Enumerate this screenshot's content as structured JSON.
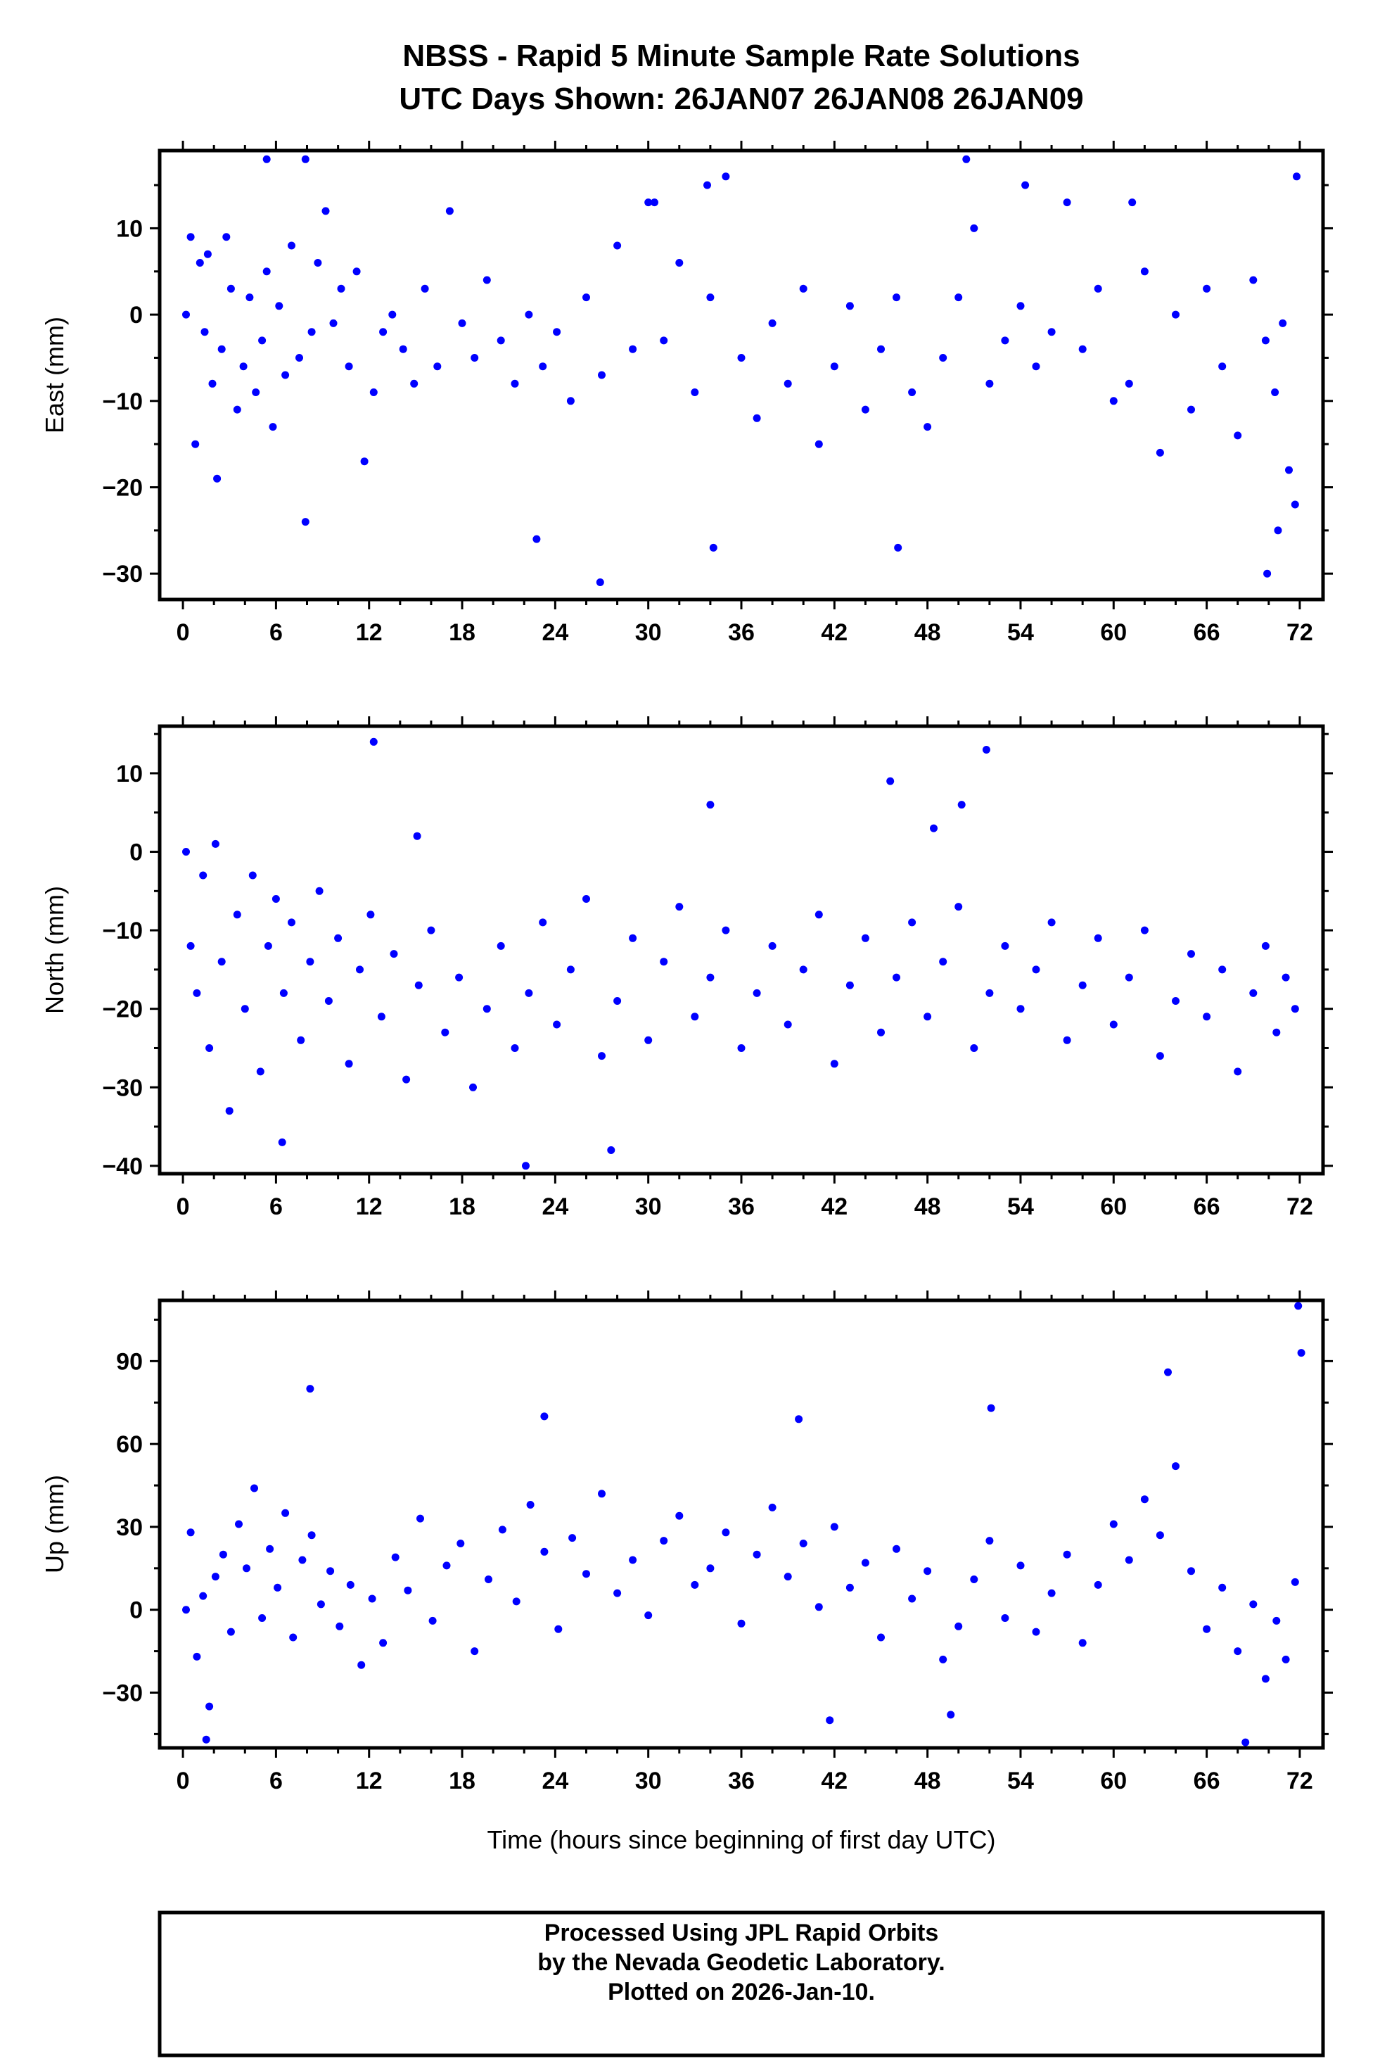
{
  "title": {
    "line1": "NBSS - Rapid 5 Minute Sample Rate Solutions",
    "line2": "UTC Days Shown:  26JAN07 26JAN08 26JAN09"
  },
  "xlabel": "Time (hours since beginning of first day UTC)",
  "footer": {
    "line1": "Processed Using JPL Rapid Orbits",
    "line2": "by the Nevada Geodetic Laboratory.",
    "line3": "Plotted on 2026-Jan-10."
  },
  "colors": {
    "points": "#0000ff",
    "frame": "#000000"
  },
  "chart_data": [
    {
      "type": "scatter",
      "ylabel": "East (mm)",
      "xlim": [
        -1.5,
        73.5
      ],
      "ylim": [
        -33,
        19
      ],
      "x_ticks": [
        0,
        6,
        12,
        18,
        24,
        30,
        36,
        42,
        48,
        54,
        60,
        66,
        72
      ],
      "y_ticks": [
        -30,
        -20,
        -10,
        0,
        10
      ],
      "x_tick_labels": [
        "0",
        "6",
        "12",
        "18",
        "24",
        "30",
        "36",
        "42",
        "48",
        "54",
        "60",
        "66",
        "72"
      ],
      "y_tick_labels": [
        "−30",
        "−20",
        "−10",
        "0",
        "10"
      ],
      "x": [
        0.2,
        0.5,
        0.8,
        1.1,
        1.4,
        1.6,
        1.9,
        2.2,
        2.5,
        2.8,
        3.1,
        3.5,
        3.9,
        4.3,
        4.7,
        5.1,
        5.4,
        5.8,
        6.2,
        6.6,
        7.0,
        7.5,
        7.9,
        8.3,
        8.7,
        9.2,
        9.7,
        10.2,
        10.7,
        11.2,
        11.7,
        12.3,
        12.9,
        13.5,
        14.2,
        14.9,
        15.6,
        16.4,
        17.2,
        18.0,
        18.8,
        19.6,
        20.5,
        21.4,
        22.3,
        23.2,
        24.1,
        25.0,
        26.0,
        27.0,
        28.0,
        29.0,
        30.0,
        31.0,
        32.0,
        33.0,
        34.0,
        35.0,
        36.0,
        37.0,
        38.0,
        39.0,
        40.0,
        41.0,
        42.0,
        43.0,
        44.0,
        45.0,
        46.0,
        47.0,
        48.0,
        49.0,
        50.0,
        51.0,
        52.0,
        53.0,
        54.0,
        55.0,
        56.0,
        57.0,
        58.0,
        59.0,
        60.0,
        61.0,
        62.0,
        63.0,
        64.0,
        65.0,
        66.0,
        67.0,
        68.0,
        69.0,
        69.8,
        70.4,
        70.9,
        71.3,
        71.7,
        5.4,
        7.9,
        22.8,
        26.9,
        30.4,
        33.8,
        34.2,
        46.1,
        50.5,
        54.3,
        61.2,
        69.9,
        70.6,
        71.8
      ],
      "y": [
        0,
        9,
        -15,
        6,
        -2,
        7,
        -8,
        -19,
        -4,
        9,
        3,
        -11,
        -6,
        2,
        -9,
        -3,
        5,
        -13,
        1,
        -7,
        8,
        -5,
        -24,
        -2,
        6,
        12,
        -1,
        3,
        -6,
        5,
        -17,
        -9,
        -2,
        0,
        -4,
        -8,
        3,
        -6,
        12,
        -1,
        -5,
        4,
        -3,
        -8,
        0,
        -6,
        -2,
        -10,
        2,
        -7,
        8,
        -4,
        13,
        -3,
        6,
        -9,
        2,
        16,
        -5,
        -12,
        -1,
        -8,
        3,
        -15,
        -6,
        1,
        -11,
        -4,
        2,
        -9,
        -13,
        -5,
        2,
        10,
        -8,
        -3,
        1,
        -6,
        -2,
        13,
        -4,
        3,
        -10,
        -8,
        5,
        -16,
        0,
        -11,
        3,
        -6,
        -14,
        4,
        -3,
        -9,
        -1,
        -18,
        -22,
        18,
        18,
        -26,
        -31,
        13,
        15,
        -27,
        -27,
        18,
        15,
        13,
        -30,
        -25,
        16
      ],
      "marker_color": "#0000ff"
    },
    {
      "type": "scatter",
      "ylabel": "North (mm)",
      "xlim": [
        -1.5,
        73.5
      ],
      "ylim": [
        -41,
        16
      ],
      "x_ticks": [
        0,
        6,
        12,
        18,
        24,
        30,
        36,
        42,
        48,
        54,
        60,
        66,
        72
      ],
      "y_ticks": [
        -40,
        -30,
        -20,
        -10,
        0,
        10
      ],
      "x_tick_labels": [
        "0",
        "6",
        "12",
        "18",
        "24",
        "30",
        "36",
        "42",
        "48",
        "54",
        "60",
        "66",
        "72"
      ],
      "y_tick_labels": [
        "−40",
        "−30",
        "−20",
        "−10",
        "0",
        "10"
      ],
      "x": [
        0.2,
        0.5,
        0.9,
        1.3,
        1.7,
        2.1,
        2.5,
        3.0,
        3.5,
        4.0,
        4.5,
        5.0,
        5.5,
        6.0,
        6.5,
        7.0,
        7.6,
        8.2,
        8.8,
        9.4,
        10.0,
        10.7,
        11.4,
        12.1,
        12.8,
        13.6,
        14.4,
        15.2,
        16.0,
        16.9,
        17.8,
        18.7,
        19.6,
        20.5,
        21.4,
        22.3,
        23.2,
        24.1,
        25.0,
        26.0,
        27.0,
        28.0,
        29.0,
        30.0,
        31.0,
        32.0,
        33.0,
        34.0,
        35.0,
        36.0,
        37.0,
        38.0,
        39.0,
        40.0,
        41.0,
        42.0,
        43.0,
        44.0,
        45.0,
        46.0,
        47.0,
        48.0,
        49.0,
        50.0,
        51.0,
        52.0,
        53.0,
        54.0,
        55.0,
        56.0,
        57.0,
        58.0,
        59.0,
        60.0,
        61.0,
        62.0,
        63.0,
        64.0,
        65.0,
        66.0,
        67.0,
        68.0,
        69.0,
        69.8,
        70.5,
        71.1,
        71.7,
        12.3,
        15.1,
        22.1,
        34.0,
        45.6,
        48.4,
        50.2,
        51.8,
        6.4,
        27.6
      ],
      "y": [
        0,
        -12,
        -18,
        -3,
        -25,
        1,
        -14,
        -33,
        -8,
        -20,
        -3,
        -28,
        -12,
        -6,
        -18,
        -9,
        -24,
        -14,
        -5,
        -19,
        -11,
        -27,
        -15,
        -8,
        -21,
        -13,
        -29,
        -17,
        -10,
        -23,
        -16,
        -30,
        -20,
        -12,
        -25,
        -18,
        -9,
        -22,
        -15,
        -6,
        -26,
        -19,
        -11,
        -24,
        -14,
        -7,
        -21,
        -16,
        -10,
        -25,
        -18,
        -12,
        -22,
        -15,
        -8,
        -27,
        -17,
        -11,
        -23,
        -16,
        -9,
        -21,
        -14,
        -7,
        -25,
        -18,
        -12,
        -20,
        -15,
        -9,
        -24,
        -17,
        -11,
        -22,
        -16,
        -10,
        -26,
        -19,
        -13,
        -21,
        -15,
        -28,
        -18,
        -12,
        -23,
        -16,
        -20,
        14,
        2,
        -40,
        6,
        9,
        3,
        6,
        13,
        -37,
        -38
      ],
      "marker_color": "#0000ff"
    },
    {
      "type": "scatter",
      "ylabel": "Up (mm)",
      "xlim": [
        -1.5,
        73.5
      ],
      "ylim": [
        -50,
        112
      ],
      "x_ticks": [
        0,
        6,
        12,
        18,
        24,
        30,
        36,
        42,
        48,
        54,
        60,
        66,
        72
      ],
      "y_ticks": [
        -30,
        0,
        30,
        60,
        90
      ],
      "x_tick_labels": [
        "0",
        "6",
        "12",
        "18",
        "24",
        "30",
        "36",
        "42",
        "48",
        "54",
        "60",
        "66",
        "72"
      ],
      "y_tick_labels": [
        "−30",
        "0",
        "30",
        "60",
        "90"
      ],
      "x": [
        0.2,
        0.5,
        0.9,
        1.3,
        1.7,
        2.1,
        2.6,
        3.1,
        3.6,
        4.1,
        4.6,
        5.1,
        5.6,
        6.1,
        6.6,
        7.1,
        7.7,
        8.3,
        8.9,
        9.5,
        10.1,
        10.8,
        11.5,
        12.2,
        12.9,
        13.7,
        14.5,
        15.3,
        16.1,
        17.0,
        17.9,
        18.8,
        19.7,
        20.6,
        21.5,
        22.4,
        23.3,
        24.2,
        25.1,
        26.0,
        27.0,
        28.0,
        29.0,
        30.0,
        31.0,
        32.0,
        33.0,
        34.0,
        35.0,
        36.0,
        37.0,
        38.0,
        39.0,
        40.0,
        41.0,
        42.0,
        43.0,
        44.0,
        45.0,
        46.0,
        47.0,
        48.0,
        49.0,
        50.0,
        51.0,
        52.0,
        53.0,
        54.0,
        55.0,
        56.0,
        57.0,
        58.0,
        59.0,
        60.0,
        61.0,
        62.0,
        63.0,
        64.0,
        65.0,
        66.0,
        67.0,
        68.0,
        69.0,
        69.8,
        70.5,
        71.1,
        71.7,
        8.2,
        23.3,
        39.7,
        52.1,
        63.5,
        71.9,
        72.1,
        1.5,
        41.7,
        49.5,
        68.5
      ],
      "y": [
        0,
        28,
        -17,
        5,
        -35,
        12,
        20,
        -8,
        31,
        15,
        44,
        -3,
        22,
        8,
        35,
        -10,
        18,
        27,
        2,
        14,
        -6,
        9,
        -20,
        4,
        -12,
        19,
        7,
        33,
        -4,
        16,
        24,
        -15,
        11,
        29,
        3,
        38,
        21,
        -7,
        26,
        13,
        42,
        6,
        18,
        -2,
        25,
        34,
        9,
        15,
        28,
        -5,
        20,
        37,
        12,
        24,
        1,
        30,
        8,
        17,
        -10,
        22,
        4,
        14,
        -18,
        -6,
        11,
        25,
        -3,
        16,
        -8,
        6,
        20,
        -12,
        9,
        31,
        18,
        40,
        27,
        52,
        14,
        -7,
        8,
        -15,
        2,
        -25,
        -4,
        -18,
        10,
        80,
        70,
        69,
        73,
        86,
        110,
        93,
        -47,
        -40,
        -38,
        -48
      ],
      "marker_color": "#0000ff"
    }
  ]
}
